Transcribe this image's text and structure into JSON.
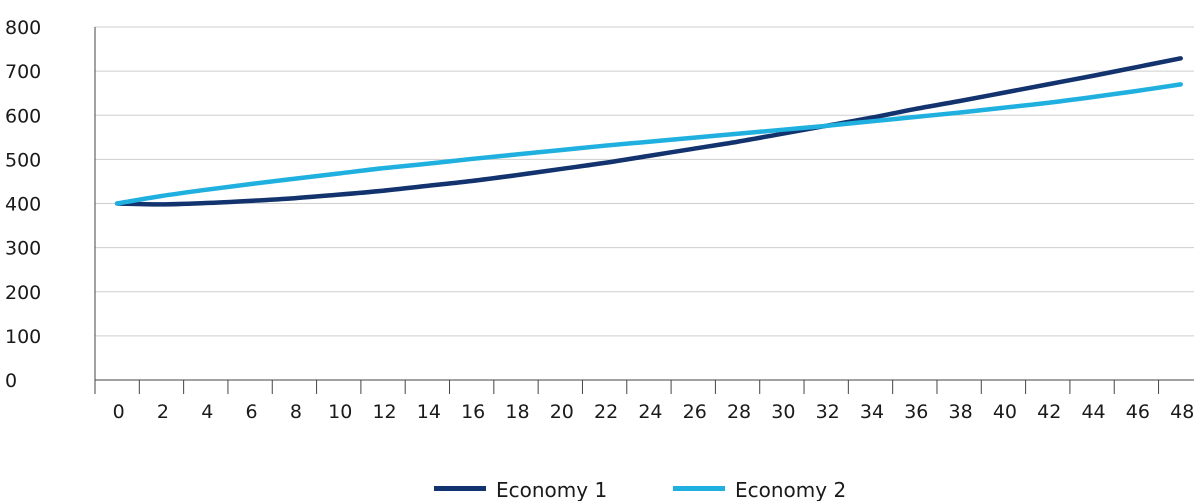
{
  "chart_data": {
    "type": "line",
    "title": "",
    "xlabel": "",
    "ylabel": "",
    "x": [
      0,
      2,
      4,
      6,
      8,
      10,
      12,
      14,
      16,
      18,
      20,
      22,
      24,
      26,
      28,
      30,
      32,
      34,
      36,
      38,
      40,
      42,
      44,
      46,
      48
    ],
    "x_tick_labels": [
      "0",
      "2",
      "4",
      "6",
      "8",
      "10",
      "12",
      "14",
      "16",
      "18",
      "20",
      "22",
      "24",
      "26",
      "28",
      "30",
      "32",
      "34",
      "36",
      "38",
      "40",
      "42",
      "44",
      "46",
      "48"
    ],
    "y_tick_values": [
      0,
      100,
      200,
      300,
      400,
      500,
      600,
      700,
      800
    ],
    "y_tick_labels": [
      "0",
      "100",
      "200",
      "300",
      "400",
      "500",
      "600",
      "700",
      "800"
    ],
    "ylim": [
      0,
      800
    ],
    "xlim": [
      -1,
      48.6
    ],
    "grid": "horizontal",
    "legend_position": "bottom",
    "series": [
      {
        "name": "Economy 1",
        "color": "#12336e",
        "values": [
          400,
          398,
          401,
          406,
          412,
          420,
          429,
          440,
          451,
          464,
          478,
          492,
          508,
          524,
          540,
          558,
          576,
          594,
          614,
          632,
          651,
          670,
          689,
          709,
          729
        ]
      },
      {
        "name": "Economy 2",
        "color": "#1fb0df",
        "values": [
          400,
          417,
          431,
          444,
          456,
          468,
          480,
          490,
          501,
          511,
          521,
          531,
          540,
          549,
          558,
          567,
          576,
          586,
          596,
          606,
          617,
          628,
          641,
          655,
          670
        ]
      }
    ]
  }
}
